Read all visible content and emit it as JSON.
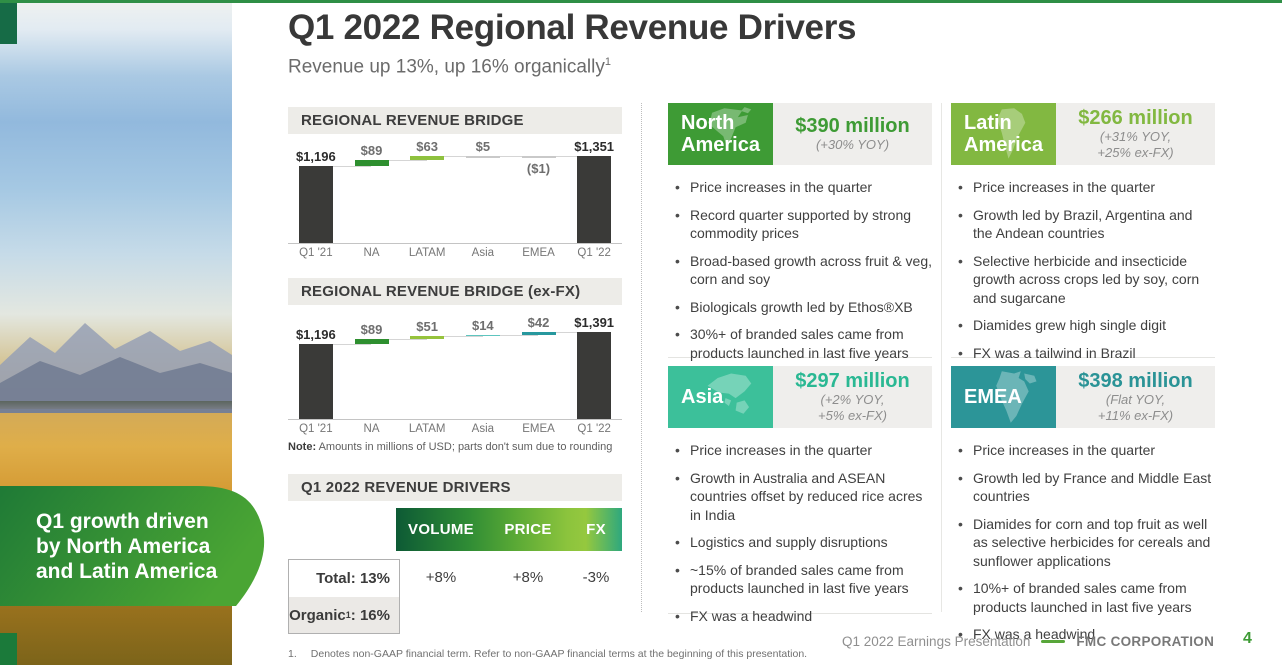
{
  "slide": {
    "title": "Q1 2022 Regional Revenue Drivers",
    "subtitle": "Revenue up 13%, up 16% organically",
    "subtitle_sup": "1"
  },
  "banner": {
    "text": "Q1 growth driven by North America and Latin America"
  },
  "colors": {
    "brand_green": "#3e9b35",
    "lime_green": "#82b841",
    "mint_teal": "#3cc09a",
    "teal": "#2c9598",
    "bar_dark": "#3a3a38",
    "page_number_green": "#3e9b35"
  },
  "chart_data": [
    {
      "type": "bar",
      "subtype": "waterfall",
      "title": "REGIONAL REVENUE BRIDGE",
      "categories": [
        "Q1 '21",
        "NA",
        "LATAM",
        "Asia",
        "EMEA",
        "Q1 '22"
      ],
      "values": [
        1196,
        89,
        63,
        5,
        -1,
        1351
      ],
      "value_labels": [
        "$1,196",
        "$89",
        "$63",
        "$5",
        "($1)",
        "$1,351"
      ],
      "bar_roles": [
        "total",
        "delta",
        "delta",
        "delta",
        "delta",
        "total"
      ],
      "bar_colors": [
        "#3a3a38",
        "#2e8f2f",
        "#8ec13e",
        "#c9c9c9",
        "#c9c9c9",
        "#3a3a38"
      ],
      "unit": "millions of USD",
      "grid": false,
      "legend": false
    },
    {
      "type": "bar",
      "subtype": "waterfall",
      "title": "REGIONAL REVENUE BRIDGE (ex-FX)",
      "categories": [
        "Q1 '21",
        "NA",
        "LATAM",
        "Asia",
        "EMEA",
        "Q1 '22"
      ],
      "values": [
        1196,
        89,
        51,
        14,
        42,
        1391
      ],
      "value_labels": [
        "$1,196",
        "$89",
        "$51",
        "$14",
        "$42",
        "$1,391"
      ],
      "bar_roles": [
        "total",
        "delta",
        "delta",
        "delta",
        "delta",
        "total"
      ],
      "bar_colors": [
        "#3a3a38",
        "#2e8f2f",
        "#96c33c",
        "#5ec5bf",
        "#27989e",
        "#3a3a38"
      ],
      "unit": "millions of USD",
      "grid": false,
      "legend": false
    }
  ],
  "note": {
    "label": "Note:",
    "text": "Amounts in millions of USD; parts don't sum due to rounding"
  },
  "drivers": {
    "title": "Q1 2022 REVENUE DRIVERS",
    "columns": [
      "VOLUME",
      "PRICE",
      "FX"
    ],
    "values": [
      "+8%",
      "+8%",
      "-3%"
    ],
    "rows": [
      {
        "label": "Total",
        "sup": "",
        "colon": ":",
        "value": "13%"
      },
      {
        "label": "Organic",
        "sup": "1",
        "colon": ":",
        "value": "16%"
      }
    ]
  },
  "regions": [
    {
      "id": "north-america",
      "name": "North America",
      "map_icon": "north-america-map-icon",
      "box_color": "#3e9b35",
      "amount": "$390 million",
      "amount_color": "#3e9b35",
      "yoy_lines": [
        "(+30% YOY)"
      ],
      "bullets": [
        "Price increases in the quarter",
        "Record quarter supported by strong commodity prices",
        "Broad-based growth across fruit & veg, corn and soy",
        "Biologicals growth led by Ethos®XB",
        "30%+ of branded sales came from products launched in last five years"
      ]
    },
    {
      "id": "latin-america",
      "name": "Latin America",
      "map_icon": "latin-america-map-icon",
      "box_color": "#82b841",
      "amount": "$266 million",
      "amount_color": "#82b841",
      "yoy_lines": [
        "(+31% YOY,",
        "+25% ex-FX)"
      ],
      "bullets": [
        "Price increases in the quarter",
        "Growth led by Brazil, Argentina and the Andean countries",
        "Selective herbicide and insecticide growth across crops led by soy, corn and sugarcane",
        "Diamides grew high single digit",
        "FX was a tailwind in Brazil"
      ]
    },
    {
      "id": "asia",
      "name": "Asia",
      "map_icon": "asia-map-icon",
      "box_color": "#3cc09a",
      "amount": "$297 million",
      "amount_color": "#2ab893",
      "yoy_lines": [
        "(+2% YOY,",
        "+5% ex-FX)"
      ],
      "bullets": [
        "Price increases in the quarter",
        "Growth in Australia and ASEAN countries offset by reduced rice acres in India",
        "Logistics and supply disruptions",
        "~15% of branded sales came from products launched in last five years",
        "FX was a headwind"
      ]
    },
    {
      "id": "emea",
      "name": "EMEA",
      "map_icon": "emea-map-icon",
      "box_color": "#2c9598",
      "amount": "$398 million",
      "amount_color": "#2a9396",
      "yoy_lines": [
        "(Flat YOY,",
        "+11% ex-FX)"
      ],
      "bullets": [
        "Price increases in the quarter",
        "Growth led by France and Middle East countries",
        "Diamides for corn and top fruit as well as selective herbicides for cereals and sunflower applications",
        "10%+ of branded sales came from products launched in last five years",
        "FX was a headwind"
      ]
    }
  ],
  "footnote": {
    "index": "1.",
    "text": "Denotes non-GAAP financial term. Refer to non-GAAP financial terms at the beginning of this presentation."
  },
  "footer": {
    "presentation": "Q1 2022 Earnings Presentation",
    "company": "FMC CORPORATION",
    "page": "4"
  }
}
